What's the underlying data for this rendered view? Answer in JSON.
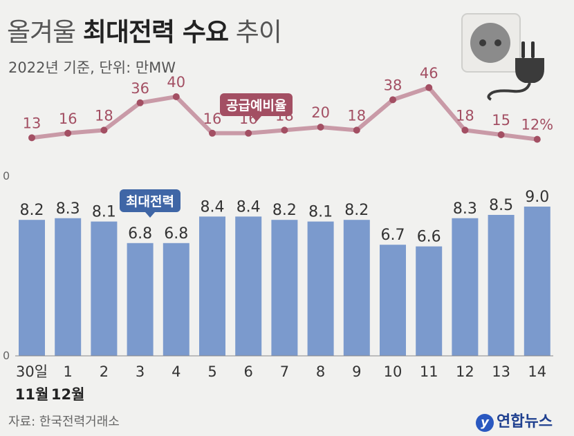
{
  "header": {
    "title_light_1": "올겨울 ",
    "title_bold": "최대전력 수요",
    "title_light_2": " 추이",
    "subtitle": "2022년 기준, 단위: 만MW"
  },
  "footer": {
    "source": "자료: 한국전력거래소",
    "logo_text": "연합뉴스"
  },
  "icon": {
    "name": "power-plug-outlet-icon"
  },
  "colors": {
    "line": "#c99aa7",
    "line_label": "#a34f63",
    "bar": "#7b9acd",
    "bar_label": "#333333",
    "callout_line": "#a34f63",
    "callout_bar": "#3f66a6"
  },
  "chart_data": [
    {
      "type": "line",
      "series": [
        {
          "name": "공급예비율",
          "values": [
            13,
            16,
            18,
            36,
            40,
            16,
            16,
            18,
            20,
            18,
            38,
            46,
            18,
            15,
            12
          ]
        }
      ],
      "value_labels": [
        "13",
        "16",
        "18",
        "36",
        "40",
        "16",
        "16",
        "18",
        "20",
        "18",
        "38",
        "46",
        "18",
        "15",
        "12%"
      ],
      "baseline_tick": "0",
      "ylim": [
        0,
        50
      ]
    },
    {
      "type": "bar",
      "categories": [
        "30일",
        "1",
        "2",
        "3",
        "4",
        "5",
        "6",
        "7",
        "8",
        "9",
        "10",
        "11",
        "12",
        "13",
        "14"
      ],
      "month_labels": [
        {
          "category_index": 0,
          "text": "11월"
        },
        {
          "category_index": 1,
          "text": "12월"
        }
      ],
      "series": [
        {
          "name": "최대전력",
          "values": [
            8.2,
            8.3,
            8.1,
            6.8,
            6.8,
            8.4,
            8.4,
            8.2,
            8.1,
            8.2,
            6.7,
            6.6,
            8.3,
            8.5,
            9.0
          ]
        }
      ],
      "value_labels": [
        "8.2",
        "8.3",
        "8.1",
        "6.8",
        "6.8",
        "8.4",
        "8.4",
        "8.2",
        "8.1",
        "8.2",
        "6.7",
        "6.6",
        "8.3",
        "8.5",
        "9.0"
      ],
      "baseline_tick": "0",
      "ylim": [
        0,
        10
      ]
    }
  ]
}
